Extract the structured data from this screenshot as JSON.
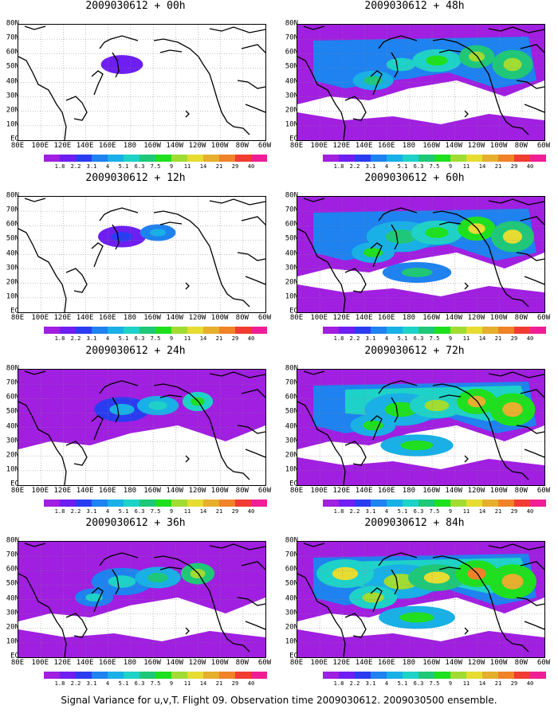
{
  "panels": [
    {
      "title": "2009030612 + 00h",
      "intensity": 0.1
    },
    {
      "title": "2009030612 + 12h",
      "intensity": 0.25
    },
    {
      "title": "2009030612 + 24h",
      "intensity": 0.45
    },
    {
      "title": "2009030612 + 36h",
      "intensity": 0.6
    },
    {
      "title": "2009030612 + 48h",
      "intensity": 0.7
    },
    {
      "title": "2009030612 + 60h",
      "intensity": 0.8
    },
    {
      "title": "2009030612 + 72h",
      "intensity": 0.9
    },
    {
      "title": "2009030612 + 84h",
      "intensity": 1.0
    }
  ],
  "lat_labels": [
    "80N",
    "70N",
    "60N",
    "50N",
    "40N",
    "30N",
    "20N",
    "10N",
    "EQ"
  ],
  "lon_labels": [
    "80E",
    "100E",
    "120E",
    "140E",
    "160E",
    "180",
    "160W",
    "140W",
    "120W",
    "100W",
    "80W",
    "60W"
  ],
  "colorbar": {
    "labels": [
      "1.8",
      "2.2",
      "3.1",
      "4",
      "5.1",
      "6.3",
      "7.5",
      "9",
      "11",
      "14",
      "21",
      "29",
      "40"
    ],
    "colors": [
      "#a01fe0",
      "#6e1ef0",
      "#2a3cf0",
      "#1e82f0",
      "#18b0e6",
      "#1ed2c8",
      "#1ec878",
      "#1ee01e",
      "#a0dc32",
      "#e6dc32",
      "#e6af2d",
      "#f08228",
      "#f03c32",
      "#f01e96"
    ]
  },
  "caption": "Signal Variance for u,v,T. Flight 09. Observation time 2009030612. 2009030500 ensemble."
}
